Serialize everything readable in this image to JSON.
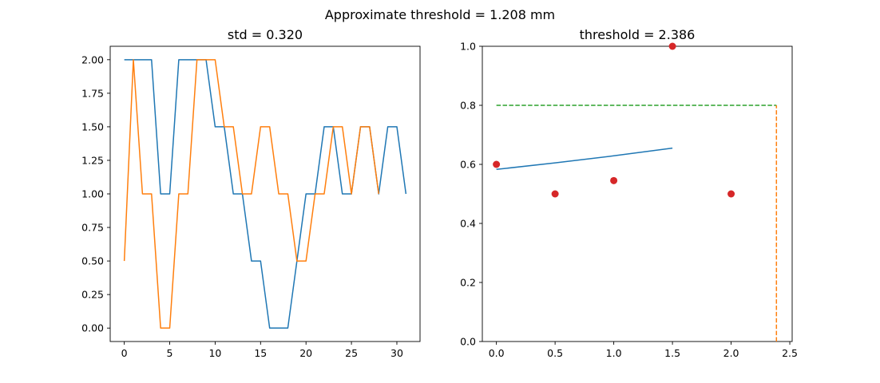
{
  "suptitle": "Approximate threshold = 1.208 mm",
  "colors": {
    "blue": "#1f77b4",
    "orange": "#ff7f0e",
    "green": "#2ca02c",
    "red": "#d62728"
  },
  "chart_data": [
    {
      "type": "line",
      "title": "std = 0.320",
      "xlabel": "",
      "ylabel": "",
      "xlim": [
        -1.55,
        32.55
      ],
      "ylim": [
        -0.1,
        2.1
      ],
      "xticks": [
        0,
        5,
        10,
        15,
        20,
        25,
        30
      ],
      "xtick_labels": [
        "0",
        "5",
        "10",
        "15",
        "20",
        "25",
        "30"
      ],
      "yticks": [
        0,
        0.25,
        0.5,
        0.75,
        1,
        1.25,
        1.5,
        1.75,
        2
      ],
      "ytick_labels": [
        "0.00",
        "0.25",
        "0.50",
        "0.75",
        "1.00",
        "1.25",
        "1.50",
        "1.75",
        "2.00"
      ],
      "grid": false,
      "series": [
        {
          "color": "#1f77b4",
          "x": [
            0,
            1,
            2,
            3,
            4,
            5,
            6,
            7,
            8,
            9,
            10,
            11,
            12,
            13,
            14,
            15,
            16,
            17,
            18,
            19,
            20,
            21,
            22,
            23,
            24,
            25,
            26,
            27,
            28,
            29,
            30,
            31
          ],
          "y": [
            2,
            2,
            2,
            2,
            1,
            1,
            2,
            2,
            2,
            2,
            1.5,
            1.5,
            1,
            1,
            0.5,
            0.5,
            0,
            0,
            0,
            0.5,
            1,
            1,
            1.5,
            1.5,
            1,
            1,
            1.5,
            1.5,
            1,
            1.5,
            1.5,
            1
          ]
        },
        {
          "color": "#ff7f0e",
          "x": [
            0,
            1,
            2,
            3,
            4,
            5,
            6,
            7,
            8,
            9,
            10,
            11,
            12,
            13,
            14,
            15,
            16,
            17,
            18,
            19,
            20,
            21,
            22,
            23,
            24,
            25,
            26,
            27,
            28
          ],
          "y": [
            0.5,
            2,
            1,
            1,
            0,
            0,
            1,
            1,
            2,
            2,
            2,
            1.5,
            1.5,
            1,
            1,
            1.5,
            1.5,
            1,
            1,
            0.5,
            0.5,
            1,
            1,
            1.5,
            1.5,
            1,
            1.5,
            1.5,
            1
          ]
        }
      ]
    },
    {
      "type": "scatter",
      "title": "threshold = 2.386",
      "xlabel": "",
      "ylabel": "",
      "xlim": [
        -0.12,
        2.52
      ],
      "ylim": [
        0,
        1
      ],
      "xticks": [
        0,
        0.5,
        1,
        1.5,
        2,
        2.5
      ],
      "xtick_labels": [
        "0.0",
        "0.5",
        "1.0",
        "1.5",
        "2.0",
        "2.5"
      ],
      "yticks": [
        0,
        0.2,
        0.4,
        0.6,
        0.8,
        1
      ],
      "ytick_labels": [
        "0.0",
        "0.2",
        "0.4",
        "0.6",
        "0.8",
        "1.0"
      ],
      "grid": false,
      "points": {
        "color": "#d62728",
        "x": [
          0,
          0.5,
          1,
          1.5,
          2
        ],
        "y": [
          0.6,
          0.5,
          0.545,
          1.0,
          0.5
        ]
      },
      "fit_line": {
        "color": "#1f77b4",
        "x": [
          0,
          0.5,
          1,
          1.5
        ],
        "y": [
          0.583,
          0.605,
          0.629,
          0.655
        ]
      },
      "hline": {
        "color": "#2ca02c",
        "style": "dashed",
        "y": 0.8,
        "x_from": 0,
        "x_to": 2.386
      },
      "vline": {
        "color": "#ff7f0e",
        "style": "dashed",
        "x": 2.386,
        "y_from": 0,
        "y_to": 0.8
      }
    }
  ]
}
